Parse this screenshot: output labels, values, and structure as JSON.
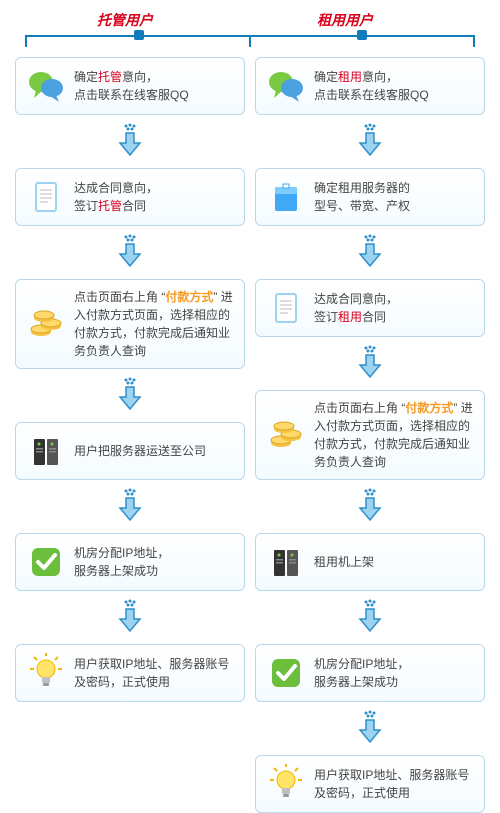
{
  "colors": {
    "border": "#b8d9ee",
    "bar": "#117cbb",
    "t_header": "#d9001b",
    "r_header": "#d9001b",
    "text": "#444444",
    "hl_red": "#d9001b",
    "hl_orange": "#f59a23",
    "arrow_fill": "#9bd3f0",
    "arrow_stroke": "#2e8fca",
    "dot": "#2e8fca"
  },
  "left": {
    "title": "托管用户",
    "steps": [
      {
        "icon": "chat",
        "frags": [
          {
            "t": "确定"
          },
          {
            "t": "托管",
            "c": "hl-red"
          },
          {
            "t": "意向，"
          },
          {
            "br": 1
          },
          {
            "t": "点击联系在线客服QQ"
          }
        ]
      },
      {
        "icon": "doc",
        "frags": [
          {
            "t": "达成合同意向，"
          },
          {
            "br": 1
          },
          {
            "t": "签订"
          },
          {
            "t": "托管",
            "c": "hl-red"
          },
          {
            "t": "合同"
          }
        ]
      },
      {
        "icon": "coins",
        "frags": [
          {
            "t": "点击页面右上角 “"
          },
          {
            "t": "付款方式",
            "c": "hl-orange"
          },
          {
            "t": "” 进入付款方式页面，选择相应的付款方式，付款完成后通知业务负责人查询"
          }
        ]
      },
      {
        "icon": "server",
        "frags": [
          {
            "t": "用户把服务器运送至公司"
          }
        ]
      },
      {
        "icon": "check",
        "frags": [
          {
            "t": "机房分配IP地址，"
          },
          {
            "br": 1
          },
          {
            "t": "服务器上架成功"
          }
        ]
      },
      {
        "icon": "bulb",
        "frags": [
          {
            "t": "用户获取IP地址、服务器账号及密码，正式使用"
          }
        ]
      }
    ]
  },
  "right": {
    "title": "租用用户",
    "steps": [
      {
        "icon": "chat",
        "frags": [
          {
            "t": "确定"
          },
          {
            "t": "租用",
            "c": "hl-red"
          },
          {
            "t": "意向，"
          },
          {
            "br": 1
          },
          {
            "t": "点击联系在线客服QQ"
          }
        ]
      },
      {
        "icon": "box",
        "frags": [
          {
            "t": "确定租用服务器的"
          },
          {
            "br": 1
          },
          {
            "t": "型号、带宽、产权"
          }
        ]
      },
      {
        "icon": "doc",
        "frags": [
          {
            "t": "达成合同意向，"
          },
          {
            "br": 1
          },
          {
            "t": "签订"
          },
          {
            "t": "租用",
            "c": "hl-red"
          },
          {
            "t": "合同"
          }
        ]
      },
      {
        "icon": "coins",
        "frags": [
          {
            "t": "点击页面右上角 “"
          },
          {
            "t": "付款方式",
            "c": "hl-orange"
          },
          {
            "t": "” 进入付款方式页面，选择相应的付款方式，付款完成后通知业务负责人查询"
          }
        ]
      },
      {
        "icon": "server",
        "frags": [
          {
            "t": "租用机上架"
          }
        ]
      },
      {
        "icon": "check",
        "frags": [
          {
            "t": "机房分配IP地址，"
          },
          {
            "br": 1
          },
          {
            "t": "服务器上架成功"
          }
        ]
      },
      {
        "icon": "bulb",
        "frags": [
          {
            "t": "用户获取IP地址、服务器账号及密码，正式使用"
          }
        ]
      }
    ]
  }
}
